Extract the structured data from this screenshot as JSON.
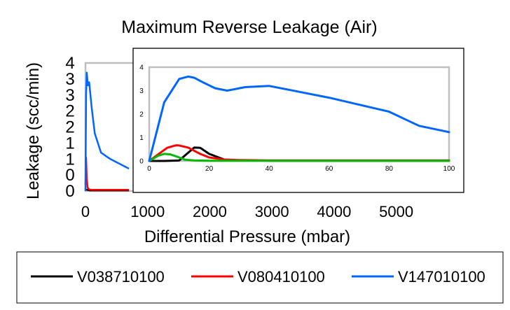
{
  "chart_data": {
    "type": "line",
    "title": "Maximum Reverse Leakage (Air)",
    "xlabel": "Differential Pressure (mbar)",
    "ylabel": "Leakage (scc/min)",
    "xlim": [
      0,
      5500
    ],
    "ylim": [
      0,
      4
    ],
    "x_ticks": [
      "0",
      "1000",
      "2000",
      "3000",
      "4000",
      "5000"
    ],
    "y_ticks": [
      "0",
      "0",
      "1",
      "1",
      "2",
      "2",
      "3",
      "3",
      "4"
    ],
    "grid": false,
    "legend_position": "bottom",
    "series": [
      {
        "name": "V038710100",
        "color": "#000000",
        "x": [
          0,
          20,
          40,
          60,
          100,
          200,
          400,
          700
        ],
        "y": [
          0.05,
          0.04,
          0.03,
          0.02,
          0.02,
          0.02,
          0.02,
          0.02
        ]
      },
      {
        "name": "V080410100",
        "color": "#ff0000",
        "x": [
          0,
          10,
          20,
          35,
          60,
          100,
          200,
          400,
          700
        ],
        "y": [
          0.2,
          1.05,
          0.4,
          0.1,
          0.05,
          0.04,
          0.04,
          0.04,
          0.04
        ]
      },
      {
        "name": "V147010100",
        "color": "#0066ff",
        "x": [
          0,
          10,
          20,
          40,
          60,
          80,
          100,
          150,
          250,
          400,
          550,
          700
        ],
        "y": [
          0.0,
          3.0,
          3.7,
          3.3,
          3.4,
          3.0,
          2.6,
          1.8,
          1.2,
          1.0,
          0.85,
          0.7
        ]
      }
    ],
    "inset": {
      "type": "line",
      "xlim": [
        0,
        100
      ],
      "ylim": [
        0,
        4
      ],
      "x_ticks": [
        "0",
        "20",
        "40",
        "60",
        "80",
        "100"
      ],
      "y_ticks": [
        "0",
        "1",
        "2",
        "3",
        "4"
      ],
      "series": [
        {
          "color": "#000000",
          "x": [
            0,
            5,
            10,
            15,
            17,
            20,
            25,
            30,
            40,
            100
          ],
          "y": [
            0,
            0,
            0.02,
            0.57,
            0.56,
            0.3,
            0.06,
            0.02,
            0.01,
            0.01
          ]
        },
        {
          "color": "#ff0000",
          "x": [
            0,
            3,
            6,
            9,
            10,
            13,
            17,
            20,
            25,
            30,
            40,
            100
          ],
          "y": [
            0,
            0.28,
            0.56,
            0.67,
            0.66,
            0.57,
            0.3,
            0.15,
            0.06,
            0.04,
            0.02,
            0.02
          ]
        },
        {
          "color": "#00bb00",
          "x": [
            0,
            3,
            5,
            7,
            10,
            12,
            15,
            20,
            30,
            100
          ],
          "y": [
            0,
            0.22,
            0.3,
            0.28,
            0.15,
            0.05,
            0.02,
            0.01,
            0.01,
            0.01
          ]
        },
        {
          "color": "#0066ff",
          "x": [
            0,
            5,
            10,
            13,
            15,
            18,
            22,
            26,
            32,
            40,
            46,
            50,
            60,
            70,
            80,
            90,
            100
          ],
          "y": [
            0,
            2.5,
            3.5,
            3.6,
            3.55,
            3.35,
            3.1,
            3.0,
            3.15,
            3.2,
            3.05,
            2.95,
            2.7,
            2.4,
            2.1,
            1.5,
            1.23
          ]
        }
      ]
    }
  }
}
